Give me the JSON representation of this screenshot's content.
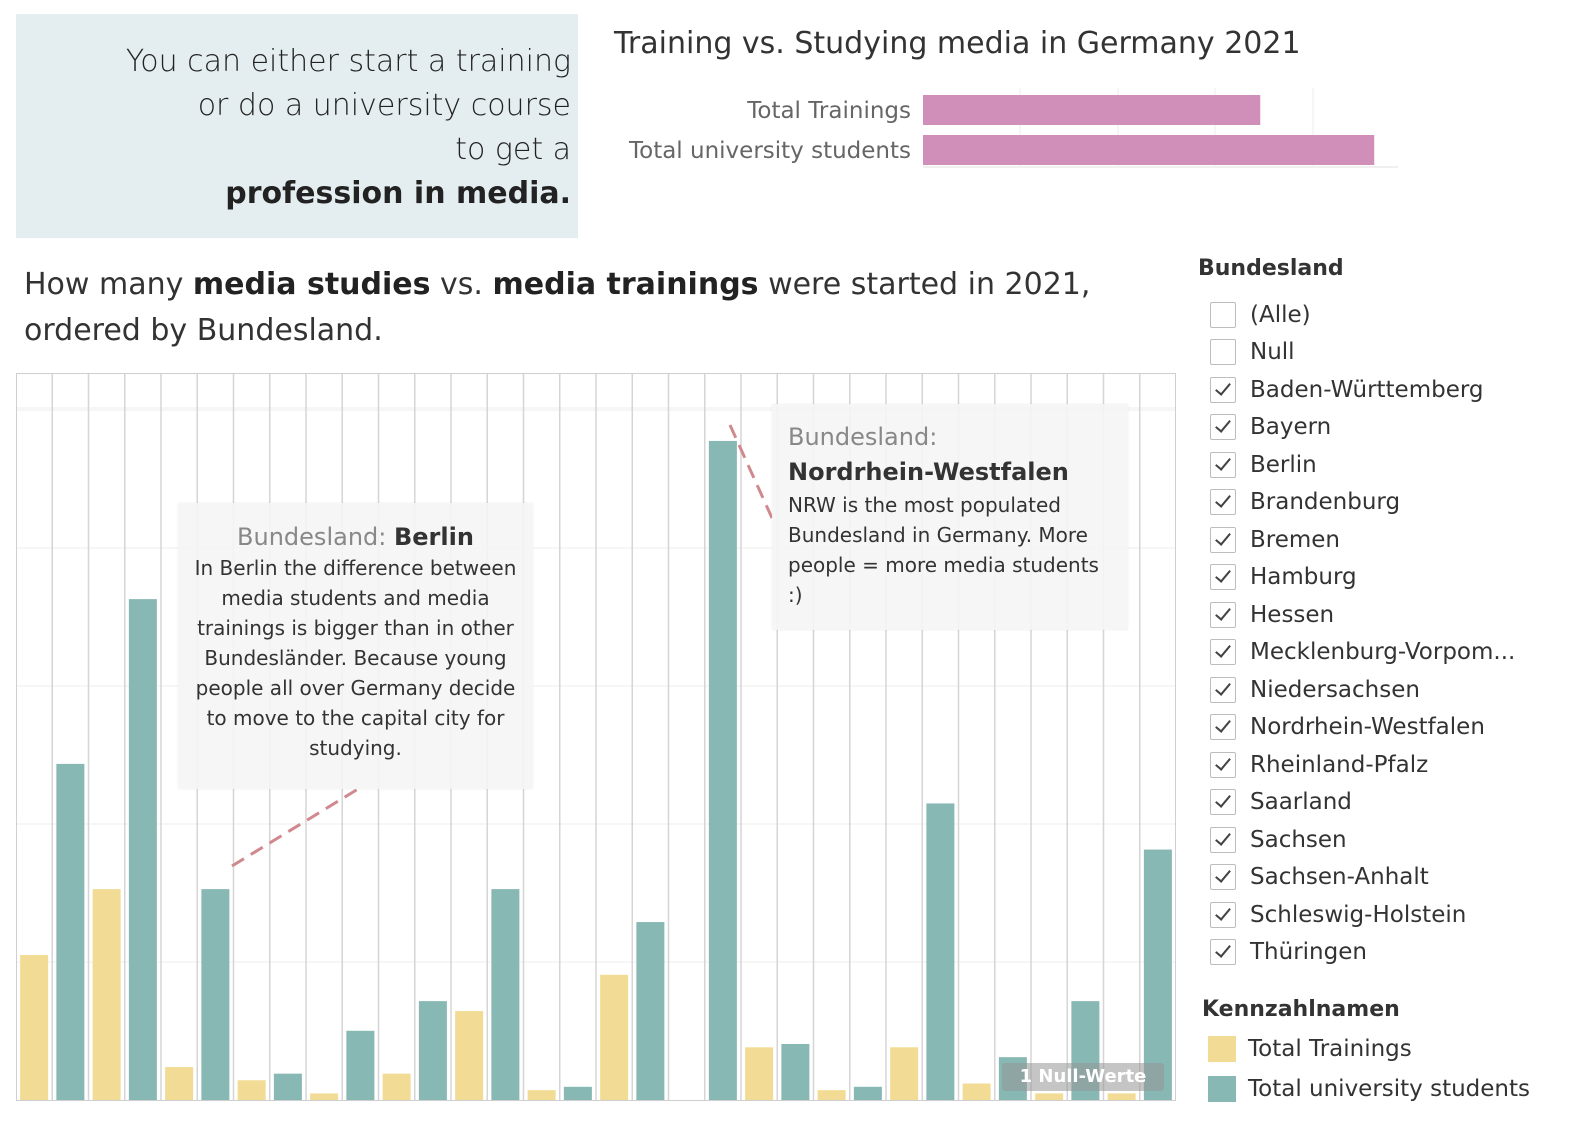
{
  "intro": {
    "line1": "You can either start a training",
    "line2": "or do a university course",
    "line3": "to get a",
    "line4": "profession in media."
  },
  "summary": {
    "title": "Training vs. Studying media in Germany 2021",
    "labels": [
      "Total Trainings",
      "Total university students"
    ],
    "values": [
      0.71,
      0.95
    ],
    "color": "#cf8fb8"
  },
  "main_title": {
    "part1": "How many ",
    "bold1": "media studies",
    "part2": " vs. ",
    "bold2": "media trainings",
    "part3": " were started in 2021, ordered by Bundesland."
  },
  "annotations": {
    "berlin": {
      "label": "Bundesland:",
      "name": "Berlin",
      "text": "In Berlin the difference between media students and media trainings is bigger than in other Bundesländer. Because young people all over Germany decide to move to the capital city for studying."
    },
    "nrw": {
      "label": "Bundesland:",
      "name": "Nordrhein-Westfalen",
      "text": "NRW is the most populated Bundesland in Germany. More people = more media students :)"
    }
  },
  "null_badge": "1 Null-Werte",
  "filter": {
    "title": "Bundesland",
    "items": [
      {
        "label": "(Alle)",
        "checked": false
      },
      {
        "label": "Null",
        "checked": false
      },
      {
        "label": "Baden-Württemberg",
        "checked": true
      },
      {
        "label": "Bayern",
        "checked": true
      },
      {
        "label": "Berlin",
        "checked": true
      },
      {
        "label": "Brandenburg",
        "checked": true
      },
      {
        "label": "Bremen",
        "checked": true
      },
      {
        "label": "Hamburg",
        "checked": true
      },
      {
        "label": "Hessen",
        "checked": true
      },
      {
        "label": "Mecklenburg-Vorpom...",
        "checked": true
      },
      {
        "label": "Niedersachsen",
        "checked": true
      },
      {
        "label": "Nordrhein-Westfalen",
        "checked": true
      },
      {
        "label": "Rheinland-Pfalz",
        "checked": true
      },
      {
        "label": "Saarland",
        "checked": true
      },
      {
        "label": "Sachsen",
        "checked": true
      },
      {
        "label": "Sachsen-Anhalt",
        "checked": true
      },
      {
        "label": "Schleswig-Holstein",
        "checked": true
      },
      {
        "label": "Thüringen",
        "checked": true
      }
    ]
  },
  "legend": {
    "title": "Kennzahlnamen",
    "items": [
      {
        "label": "Total Trainings",
        "color": "#f2dc95"
      },
      {
        "label": "Total university students",
        "color": "#88b8b4"
      }
    ]
  },
  "chart_data": {
    "type": "bar",
    "categories": [
      "Baden-Württemberg",
      "Bayern",
      "Berlin",
      "Brandenburg",
      "Bremen",
      "Hamburg",
      "Hessen",
      "Mecklenburg-Vorpommern",
      "Niedersachsen",
      "Nordrhein-Westfalen",
      "Rheinland-Pfalz",
      "Saarland",
      "Sachsen",
      "Sachsen-Anhalt",
      "Schleswig-Holstein",
      "Thüringen"
    ],
    "series": [
      {
        "name": "Total Trainings",
        "color": "#f2dc95",
        "values": [
          0.22,
          0.32,
          0.05,
          0.03,
          0.01,
          0.04,
          0.135,
          0.015,
          0.19,
          null,
          0.08,
          0.015,
          0.08,
          0.025,
          0.01,
          0.01
        ]
      },
      {
        "name": "Total university students",
        "color": "#88b8b4",
        "values": [
          0.51,
          0.76,
          0.32,
          0.04,
          0.105,
          0.15,
          0.32,
          0.02,
          0.27,
          1.0,
          0.085,
          0.02,
          0.45,
          0.065,
          0.15,
          0.38
        ]
      }
    ],
    "ylim": [
      0,
      1.05
    ],
    "grid": true
  }
}
